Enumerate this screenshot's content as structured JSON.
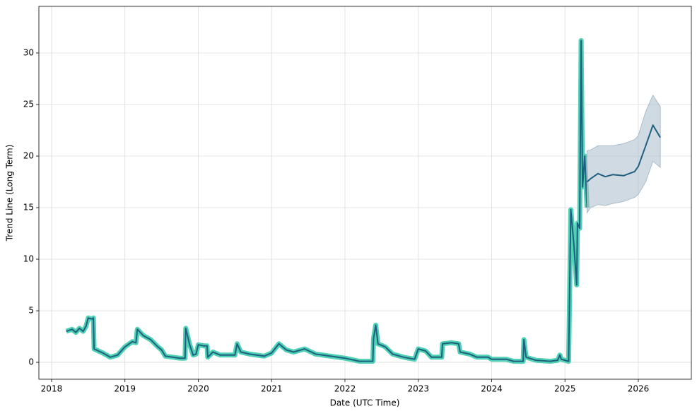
{
  "chart_data": {
    "type": "line",
    "x_label": "Date (UTC Time)",
    "y_label": "Trend Line (Long Term)",
    "xlim": [
      2017.827,
      2026.723
    ],
    "xticks": [
      2018,
      2019,
      2020,
      2021,
      2022,
      2023,
      2024,
      2025,
      2026
    ],
    "ylim": [
      -1.64,
      34.52
    ],
    "yticks": [
      0,
      5,
      10,
      15,
      20,
      25,
      30
    ],
    "grid": true,
    "series": [
      {
        "color": "#1f5f7f",
        "halo_color": "#4fd1b4",
        "x": [
          2018.2,
          2018.28,
          2018.33,
          2018.38,
          2018.43,
          2018.47,
          2018.5,
          2018.55,
          2018.57,
          2018.58,
          2018.7,
          2018.8,
          2018.9,
          2019.0,
          2019.1,
          2019.15,
          2019.17,
          2019.25,
          2019.35,
          2019.45,
          2019.5,
          2019.55,
          2019.75,
          2019.82,
          2019.83,
          2019.88,
          2019.93,
          2019.97,
          2020.0,
          2020.07,
          2020.12,
          2020.13,
          2020.2,
          2020.3,
          2020.5,
          2020.53,
          2020.58,
          2020.7,
          2020.9,
          2021.0,
          2021.1,
          2021.2,
          2021.3,
          2021.45,
          2021.6,
          2021.8,
          2022.0,
          2022.2,
          2022.38,
          2022.39,
          2022.42,
          2022.45,
          2022.55,
          2022.65,
          2022.8,
          2022.95,
          2023.0,
          2023.1,
          2023.18,
          2023.32,
          2023.33,
          2023.45,
          2023.55,
          2023.57,
          2023.7,
          2023.8,
          2023.95,
          2024.0,
          2024.2,
          2024.3,
          2024.43,
          2024.44,
          2024.47,
          2024.6,
          2024.8,
          2024.9,
          2024.93,
          2024.95,
          2025.05,
          2025.08,
          2025.12,
          2025.16,
          2025.17,
          2025.2,
          2025.22,
          2025.24,
          2025.27,
          2025.3
        ],
        "values": [
          3.0,
          3.2,
          2.9,
          3.3,
          3.0,
          3.5,
          4.3,
          4.2,
          4.3,
          1.3,
          0.9,
          0.5,
          0.7,
          1.5,
          2.0,
          1.9,
          3.2,
          2.6,
          2.2,
          1.5,
          1.2,
          0.6,
          0.4,
          0.4,
          3.3,
          1.8,
          0.7,
          0.8,
          1.7,
          1.6,
          1.6,
          0.5,
          1.0,
          0.7,
          0.7,
          1.8,
          1.0,
          0.8,
          0.6,
          0.9,
          1.8,
          1.2,
          1.0,
          1.3,
          0.8,
          0.6,
          0.4,
          0.1,
          0.1,
          2.3,
          3.6,
          1.8,
          1.5,
          0.8,
          0.5,
          0.3,
          1.3,
          1.1,
          0.5,
          0.5,
          1.8,
          1.9,
          1.8,
          1.0,
          0.8,
          0.5,
          0.5,
          0.3,
          0.3,
          0.1,
          0.1,
          2.2,
          0.5,
          0.2,
          0.1,
          0.2,
          0.7,
          0.3,
          0.1,
          14.8,
          11.5,
          7.5,
          13.5,
          13.0,
          31.2,
          17.0,
          20.0,
          15.0
        ]
      },
      {
        "color": "#1f5f7f",
        "band_color": "#a9bccb",
        "x": [
          2025.3,
          2025.35,
          2025.45,
          2025.55,
          2025.65,
          2025.8,
          2025.95,
          2026.0,
          2026.1,
          2026.2,
          2026.3
        ],
        "values": [
          17.5,
          17.8,
          18.3,
          18.0,
          18.2,
          18.1,
          18.5,
          19.0,
          21.0,
          23.0,
          21.8
        ],
        "lower": [
          14.5,
          15.0,
          15.3,
          15.2,
          15.4,
          15.6,
          16.0,
          16.3,
          17.5,
          19.5,
          18.9
        ],
        "upper": [
          20.5,
          20.6,
          21.0,
          21.0,
          21.0,
          21.2,
          21.6,
          22.0,
          24.3,
          25.9,
          24.8
        ]
      }
    ]
  }
}
